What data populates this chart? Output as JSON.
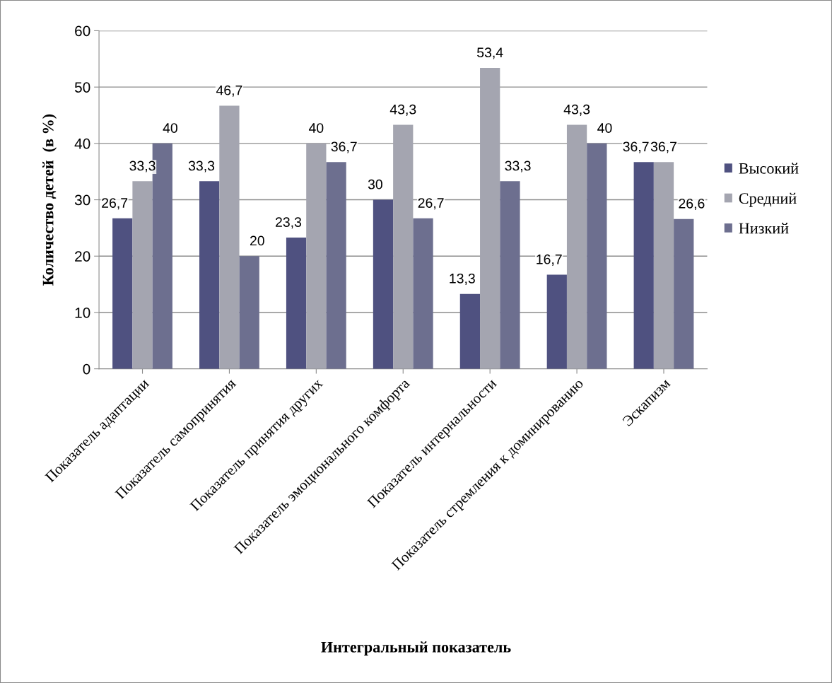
{
  "chart_data": {
    "type": "bar",
    "xlabel": "Интегральный показатель",
    "ylabel": "Количество детей  (в %)",
    "categories": [
      "Показатель адаптации",
      "Показатель самопринятия",
      "Показатель принятия других",
      "Показатель эмоционального комфорта",
      "Показатель интернальности",
      "Показатель стремления к доминированию",
      "Эскапизм"
    ],
    "series": [
      {
        "name": "Высокий",
        "color": "#4f5180",
        "values": [
          26.7,
          33.3,
          23.3,
          30,
          13.3,
          16.7,
          36.7
        ],
        "value_labels": [
          "26,7",
          "33,3",
          "23,3",
          "30",
          "13,3",
          "16,7",
          "36,7"
        ]
      },
      {
        "name": "Средний",
        "color": "#a4a5b0",
        "values": [
          33.3,
          46.7,
          40,
          43.3,
          53.4,
          43.3,
          36.7
        ],
        "value_labels": [
          "33,3",
          "46,7",
          "40",
          "43,3",
          "53,4",
          "43,3",
          "36,7"
        ]
      },
      {
        "name": "Низкий",
        "color": "#6d6f8f",
        "values": [
          40,
          20,
          36.7,
          26.7,
          33.3,
          40,
          26.6
        ],
        "value_labels": [
          "40",
          "20",
          "36,7",
          "26,7",
          "33,3",
          "40",
          "26,6"
        ]
      }
    ],
    "ylim": [
      0,
      60
    ],
    "yticks": [
      0,
      10,
      20,
      30,
      40,
      50,
      60
    ],
    "grid": "y",
    "legend": "right"
  }
}
